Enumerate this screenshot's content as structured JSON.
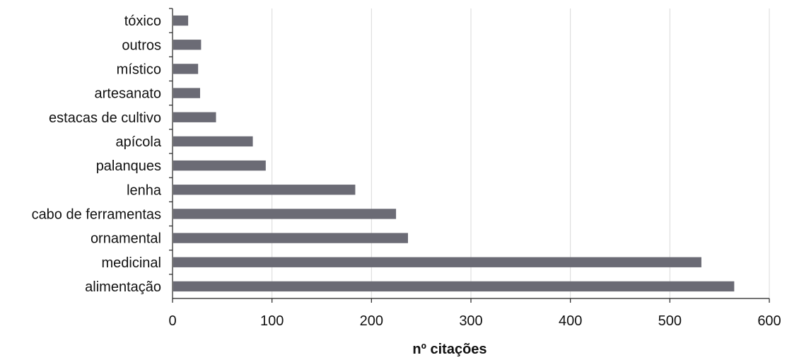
{
  "chart_data": {
    "type": "bar",
    "orientation": "horizontal",
    "categories": [
      "tóxico",
      "outros",
      "místico",
      "artesanato",
      "estacas de cultivo",
      "apícola",
      "palanques",
      "lenha",
      "cabo de ferramentas",
      "ornamental",
      "medicinal",
      "alimentação"
    ],
    "values": [
      15,
      28,
      25,
      27,
      43,
      80,
      93,
      183,
      224,
      236,
      531,
      564
    ],
    "xlabel": "nº citações",
    "ylabel": "",
    "xlim": [
      0,
      600
    ],
    "xticks": [
      "0",
      "100",
      "200",
      "300",
      "400",
      "500",
      "600"
    ],
    "grid": true,
    "bar_color": "#6b6b75"
  }
}
